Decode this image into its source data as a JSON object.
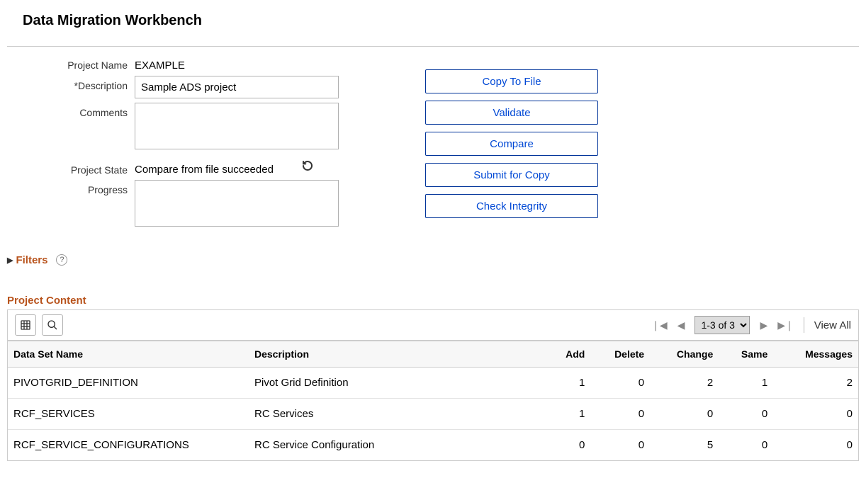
{
  "title": "Data Migration Workbench",
  "form": {
    "labels": {
      "project_name": "Project Name",
      "description": "*Description",
      "comments": "Comments",
      "project_state": "Project State",
      "progress": "Progress"
    },
    "project_name": "EXAMPLE",
    "description": "Sample ADS project",
    "comments": "",
    "project_state": "Compare from file succeeded",
    "progress": ""
  },
  "actions": {
    "copy_to_file": "Copy To File",
    "validate": "Validate",
    "compare": "Compare",
    "submit_for_copy": "Submit for Copy",
    "check_integrity": "Check Integrity"
  },
  "filters": {
    "label": "Filters"
  },
  "project_content": {
    "title": "Project Content",
    "pager": "1-3 of 3",
    "view_all": "View All",
    "columns": {
      "data_set_name": "Data Set Name",
      "description": "Description",
      "add": "Add",
      "delete": "Delete",
      "change": "Change",
      "same": "Same",
      "messages": "Messages"
    },
    "rows": [
      {
        "data_set_name": "PIVOTGRID_DEFINITION",
        "description": "Pivot Grid Definition",
        "add": 1,
        "add_link": true,
        "delete": 0,
        "change": 2,
        "change_link": true,
        "same": 1,
        "same_link": true,
        "messages": 2,
        "messages_link": true
      },
      {
        "data_set_name": "RCF_SERVICES",
        "description": "RC Services",
        "add": 1,
        "add_link": true,
        "delete": 0,
        "change": 0,
        "same": 0,
        "messages": 0
      },
      {
        "data_set_name": "RCF_SERVICE_CONFIGURATIONS",
        "description": "RC Service Configuration",
        "add": 0,
        "delete": 0,
        "change": 5,
        "change_link": true,
        "same": 0,
        "messages": 0
      }
    ]
  },
  "colors": {
    "link": "#0560d6",
    "section_heading": "#b8531c",
    "button_text": "#0048d5",
    "button_border": "#003399",
    "border": "#cccccc",
    "th_bg": "#f7f7f7"
  }
}
